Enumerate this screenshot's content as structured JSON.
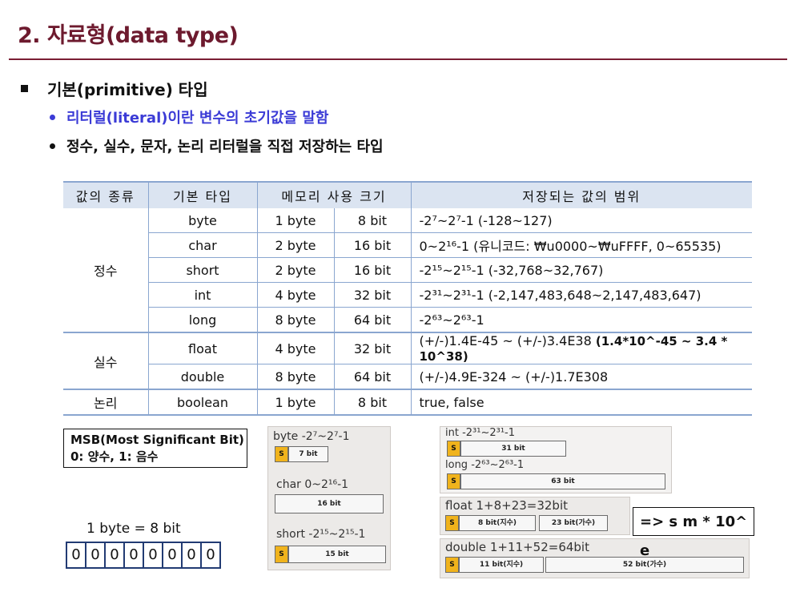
{
  "title": "2. 자료형(data type)",
  "bullets": {
    "primitive": "기본(primitive) 타입",
    "literal": "리터럴(literal)이란 변수의 초기값을 말함",
    "kinds": "정수, 실수, 문자, 논리 리터럴을 직접 저장하는 타입"
  },
  "colors": {
    "title": "#6d1a2e",
    "accent_blue": "#3b3bd6",
    "table_header": "#dbe4f1",
    "sign_bit": "#f0b31c"
  },
  "table": {
    "headers": [
      "값의 종류",
      "기본 타입",
      "메모리 사용 크기",
      "저장되는 값의 범위"
    ],
    "groups": [
      "정수",
      "실수",
      "논리"
    ],
    "rows": [
      {
        "type": "byte",
        "bytes": "1 byte",
        "bits": "8 bit",
        "range": "-2⁷~2⁷-1 (-128~127)"
      },
      {
        "type": "char",
        "bytes": "2 byte",
        "bits": "16 bit",
        "range": "0~2¹⁶-1 (유니코드: ₩u0000~₩uFFFF, 0~65535)"
      },
      {
        "type": "short",
        "bytes": "2 byte",
        "bits": "16 bit",
        "range": "-2¹⁵~2¹⁵-1 (-32,768~32,767)"
      },
      {
        "type": "int",
        "bytes": "4 byte",
        "bits": "32 bit",
        "range": "-2³¹~2³¹-1 (-2,147,483,648~2,147,483,647)"
      },
      {
        "type": "long",
        "bytes": "8 byte",
        "bits": "64 bit",
        "range": "-2⁶³~2⁶³-1"
      },
      {
        "type": "float",
        "bytes": "4 byte",
        "bits": "32 bit",
        "range": "(+/-)1.4E-45 ~ (+/-)3.4E38",
        "note": "(1.4*10^-45 ~ 3.4 * 10^38)"
      },
      {
        "type": "double",
        "bytes": "8 byte",
        "bits": "64 bit",
        "range": "(+/-)4.9E-324 ~ (+/-)1.7E308"
      },
      {
        "type": "boolean",
        "bytes": "1 byte",
        "bits": "8 bit",
        "range": "true, false"
      }
    ]
  },
  "msb": {
    "line1": "MSB(Most Significant Bit)",
    "line2": "0: 양수, 1: 음수"
  },
  "byte_demo": {
    "label": "1 byte = 8 bit",
    "bits": [
      "0",
      "0",
      "0",
      "0",
      "0",
      "0",
      "0",
      "0"
    ]
  },
  "diagrams": {
    "byte": {
      "label": "byte -2⁷~2⁷-1",
      "s": "S",
      "bar": "7 bit"
    },
    "char": {
      "label": "char  0~2¹⁶-1",
      "bar": "16 bit"
    },
    "short": {
      "label": "short -2¹⁵~2¹⁵-1",
      "s": "S",
      "bar": "15 bit"
    },
    "int": {
      "label": "int  -2³¹~2³¹-1",
      "s": "S",
      "bar": "31 bit"
    },
    "long": {
      "label": "long -2⁶³~2⁶³-1",
      "s": "S",
      "bar": "63 bit"
    },
    "float": {
      "label": "float  1+8+23=32bit",
      "s": "S",
      "exp": "8 bit(지수)",
      "man": "23 bit(가수)"
    },
    "double": {
      "label": "double  1+11+52=64bit",
      "s": "S",
      "exp": "11 bit(지수)",
      "man": "52 bit(가수)"
    }
  },
  "formula": "=> s m * 10^ e"
}
